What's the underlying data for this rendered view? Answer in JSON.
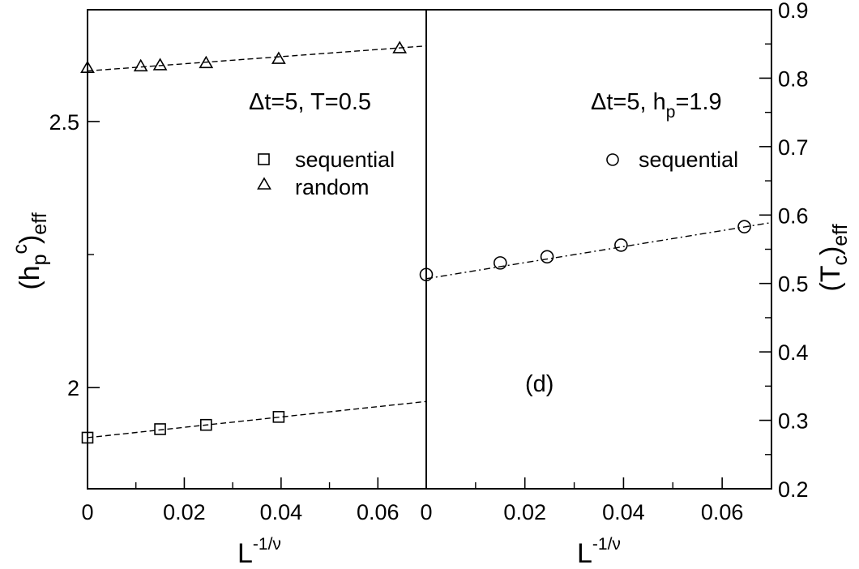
{
  "chart_data": [
    {
      "type": "scatter",
      "title": "",
      "xlabel": {
        "base": "L",
        "sup": "-1/ν"
      },
      "ylabel": {
        "open": "(h",
        "sub1": "p",
        "sup": "c",
        "mid": ")",
        "sub2": "eff"
      },
      "xlim": [
        0,
        0.07
      ],
      "ylim": [
        1.81,
        2.71
      ],
      "x_ticks": [
        0,
        0.02,
        0.04,
        0.06
      ],
      "x_tick_labels": [
        "0",
        "0.02",
        "0.04",
        "0.06"
      ],
      "y_ticks": [
        2,
        2.5
      ],
      "y_tick_labels": [
        "2",
        "2.5"
      ],
      "y_minor_ticks": [
        2.25
      ],
      "annotation": "Δt=5, T=0.5",
      "legend_placement": "upper-center",
      "series": [
        {
          "name": "sequential",
          "marker": "square",
          "x": [
            0.0,
            0.015,
            0.0245,
            0.0395
          ],
          "y": [
            1.906,
            1.922,
            1.93,
            1.945
          ],
          "fit": {
            "x": [
              0.0,
              0.07
            ],
            "y": [
              1.906,
              1.974
            ],
            "style": "dashed"
          }
        },
        {
          "name": "random",
          "marker": "triangle",
          "x": [
            0.0,
            0.011,
            0.015,
            0.0245,
            0.0395,
            0.0645
          ],
          "y": [
            2.6,
            2.603,
            2.605,
            2.609,
            2.617,
            2.637
          ],
          "fit": {
            "x": [
              0.0,
              0.07
            ],
            "y": [
              2.595,
              2.642
            ],
            "style": "dashed"
          }
        }
      ]
    },
    {
      "type": "scatter",
      "title": "",
      "panel_label": "(d)",
      "xlabel": {
        "base": "L",
        "sup": "-1/ν"
      },
      "ylabel": {
        "open": "(T",
        "sub1": "c",
        "mid": ")",
        "sub2": "eff"
      },
      "xlim": [
        0,
        0.07
      ],
      "ylim": [
        0.2,
        0.9
      ],
      "x_ticks": [
        0,
        0.02,
        0.04,
        0.06
      ],
      "x_tick_labels": [
        "0",
        "0.02",
        "0.04",
        "0.06"
      ],
      "y_ticks": [
        0.2,
        0.3,
        0.4,
        0.5,
        0.6,
        0.7,
        0.8,
        0.9
      ],
      "y_tick_labels": [
        "0.2",
        "0.3",
        "0.4",
        "0.5",
        "0.6",
        "0.7",
        "0.8",
        "0.9"
      ],
      "annotation": {
        "main": "Δt=5, h",
        "sub": "p",
        "tail": "=1.9"
      },
      "legend_placement": "upper-right",
      "series": [
        {
          "name": "sequential",
          "marker": "circle",
          "x": [
            0.0,
            0.015,
            0.0245,
            0.0395,
            0.0645
          ],
          "y": [
            0.513,
            0.53,
            0.539,
            0.556,
            0.583
          ],
          "fit": {
            "x": [
              0.0,
              0.07
            ],
            "y": [
              0.507,
              0.589
            ],
            "style": "dashdot"
          }
        }
      ]
    }
  ]
}
